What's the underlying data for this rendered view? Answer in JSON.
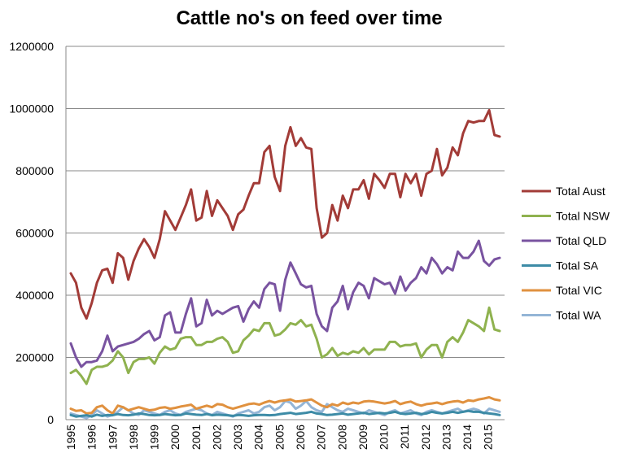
{
  "chart_data": {
    "type": "line",
    "title": "Cattle no's on feed over time",
    "xlabel": "",
    "ylabel": "",
    "ylim": [
      0,
      1200000
    ],
    "yticks": [
      "0",
      "200000",
      "400000",
      "600000",
      "800000",
      "1000000",
      "1200000"
    ],
    "xticks": [
      "1995",
      "1996",
      "1997",
      "1998",
      "1999",
      "2000",
      "2001",
      "2002",
      "2003",
      "2004",
      "2005",
      "2006",
      "2007",
      "2008",
      "2009",
      "2010",
      "2011",
      "2012",
      "2013",
      "2014",
      "2015"
    ],
    "x_start": 1995,
    "grid": "horizontal",
    "legend_position": "right",
    "series": [
      {
        "name": "Total Aust",
        "color": "#a23b37",
        "values": [
          470000,
          440000,
          360000,
          325000,
          375000,
          440000,
          480000,
          485000,
          440000,
          535000,
          520000,
          450000,
          510000,
          550000,
          580000,
          555000,
          520000,
          580000,
          670000,
          640000,
          610000,
          650000,
          690000,
          740000,
          640000,
          650000,
          735000,
          655000,
          705000,
          680000,
          655000,
          610000,
          660000,
          675000,
          720000,
          760000,
          760000,
          860000,
          880000,
          780000,
          735000,
          880000,
          940000,
          880000,
          905000,
          875000,
          870000,
          680000,
          585000,
          600000,
          690000,
          640000,
          720000,
          680000,
          740000,
          740000,
          770000,
          710000,
          790000,
          770000,
          745000,
          790000,
          790000,
          715000,
          790000,
          760000,
          790000,
          720000,
          790000,
          800000,
          870000,
          785000,
          810000,
          875000,
          850000,
          920000,
          960000,
          955000,
          960000,
          960000,
          995000,
          915000,
          910000
        ]
      },
      {
        "name": "Total NSW",
        "color": "#8fb24f",
        "values": [
          150000,
          160000,
          140000,
          115000,
          160000,
          170000,
          170000,
          175000,
          190000,
          220000,
          200000,
          150000,
          185000,
          195000,
          195000,
          200000,
          180000,
          215000,
          235000,
          225000,
          230000,
          260000,
          265000,
          265000,
          240000,
          240000,
          250000,
          250000,
          260000,
          265000,
          250000,
          215000,
          220000,
          255000,
          270000,
          290000,
          285000,
          310000,
          310000,
          270000,
          275000,
          290000,
          310000,
          305000,
          320000,
          300000,
          305000,
          260000,
          200000,
          210000,
          230000,
          205000,
          215000,
          210000,
          220000,
          215000,
          230000,
          210000,
          225000,
          225000,
          225000,
          250000,
          250000,
          235000,
          240000,
          240000,
          245000,
          200000,
          225000,
          240000,
          240000,
          200000,
          250000,
          265000,
          250000,
          280000,
          320000,
          310000,
          300000,
          285000,
          360000,
          290000,
          285000
        ]
      },
      {
        "name": "Total QLD",
        "color": "#7953a0",
        "values": [
          245000,
          200000,
          170000,
          185000,
          185000,
          190000,
          220000,
          270000,
          220000,
          235000,
          240000,
          245000,
          250000,
          260000,
          275000,
          285000,
          255000,
          265000,
          335000,
          345000,
          280000,
          280000,
          340000,
          390000,
          300000,
          310000,
          385000,
          335000,
          350000,
          340000,
          350000,
          360000,
          365000,
          315000,
          355000,
          380000,
          360000,
          420000,
          440000,
          435000,
          350000,
          450000,
          505000,
          470000,
          435000,
          425000,
          430000,
          340000,
          300000,
          285000,
          360000,
          380000,
          430000,
          355000,
          410000,
          440000,
          430000,
          390000,
          455000,
          445000,
          435000,
          440000,
          405000,
          460000,
          415000,
          440000,
          455000,
          490000,
          470000,
          520000,
          500000,
          470000,
          490000,
          480000,
          540000,
          520000,
          520000,
          540000,
          575000,
          510000,
          495000,
          515000,
          520000
        ]
      },
      {
        "name": "Total SA",
        "color": "#3d8ba6",
        "values": [
          15000,
          10000,
          12000,
          14000,
          10000,
          16000,
          12000,
          15000,
          14000,
          18000,
          15000,
          14000,
          16000,
          20000,
          18000,
          15000,
          14000,
          15000,
          18000,
          16000,
          14000,
          15000,
          20000,
          18000,
          16000,
          15000,
          18000,
          14000,
          16000,
          15000,
          14000,
          12000,
          15000,
          14000,
          12000,
          14000,
          15000,
          15000,
          14000,
          15000,
          18000,
          20000,
          22000,
          18000,
          20000,
          22000,
          25000,
          20000,
          18000,
          15000,
          16000,
          18000,
          20000,
          16000,
          18000,
          20000,
          22000,
          18000,
          20000,
          22000,
          20000,
          22000,
          25000,
          20000,
          18000,
          20000,
          22000,
          18000,
          20000,
          25000,
          22000,
          20000,
          22000,
          25000,
          22000,
          25000,
          28000,
          25000,
          25000,
          22000,
          20000,
          18000,
          15000
        ]
      },
      {
        "name": "Total VIC",
        "color": "#e0913f",
        "values": [
          35000,
          28000,
          30000,
          20000,
          22000,
          40000,
          45000,
          30000,
          20000,
          45000,
          40000,
          30000,
          35000,
          40000,
          35000,
          30000,
          32000,
          38000,
          40000,
          35000,
          38000,
          42000,
          45000,
          48000,
          35000,
          40000,
          45000,
          40000,
          50000,
          48000,
          40000,
          35000,
          40000,
          45000,
          50000,
          52000,
          48000,
          55000,
          60000,
          55000,
          60000,
          62000,
          65000,
          58000,
          60000,
          62000,
          65000,
          55000,
          45000,
          40000,
          50000,
          45000,
          55000,
          50000,
          55000,
          52000,
          58000,
          60000,
          58000,
          55000,
          52000,
          55000,
          60000,
          50000,
          55000,
          58000,
          50000,
          45000,
          50000,
          52000,
          55000,
          50000,
          55000,
          58000,
          60000,
          55000,
          62000,
          60000,
          65000,
          68000,
          72000,
          65000,
          62000
        ]
      },
      {
        "name": "Total WA",
        "color": "#94b5d6",
        "values": [
          20000,
          15000,
          10000,
          5000,
          15000,
          30000,
          20000,
          10000,
          15000,
          25000,
          40000,
          30000,
          20000,
          15000,
          30000,
          25000,
          20000,
          15000,
          25000,
          30000,
          20000,
          15000,
          25000,
          30000,
          35000,
          30000,
          20000,
          15000,
          25000,
          20000,
          15000,
          10000,
          20000,
          25000,
          30000,
          20000,
          25000,
          40000,
          45000,
          30000,
          40000,
          60000,
          55000,
          35000,
          45000,
          60000,
          40000,
          30000,
          25000,
          50000,
          40000,
          30000,
          25000,
          35000,
          30000,
          25000,
          20000,
          30000,
          25000,
          20000,
          15000,
          25000,
          30000,
          20000,
          25000,
          30000,
          20000,
          15000,
          25000,
          30000,
          25000,
          20000,
          25000,
          30000,
          35000,
          25000,
          30000,
          35000,
          30000,
          20000,
          35000,
          30000,
          25000
        ]
      }
    ]
  }
}
